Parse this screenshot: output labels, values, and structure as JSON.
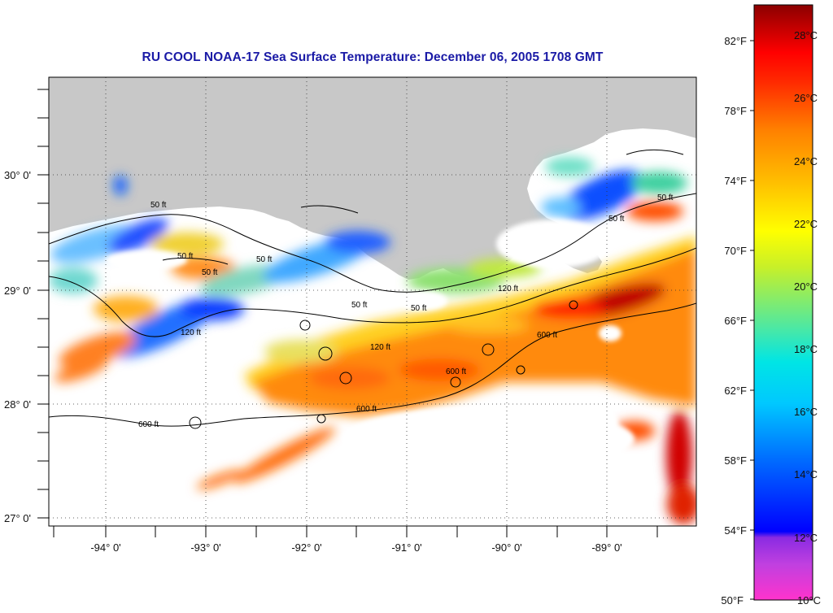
{
  "title": "RU COOL  NOAA-17  Sea Surface Temperature:  December 06, 2005 1708 GMT",
  "map": {
    "lon_labels": [
      "-94° 0'",
      "-93° 0'",
      "-92° 0'",
      "-91° 0'",
      "-90° 0'",
      "-89° 0'"
    ],
    "lat_labels": [
      "30° 0'",
      "29° 0'",
      "28° 0'",
      "27° 0'"
    ],
    "land_color": "#c8c8c8",
    "cloud_color": "#ffffff",
    "contour_labels": [
      "50 ft",
      "50 ft",
      "50 ft",
      "50 ft",
      "50 ft",
      "50 ft",
      "50 ft",
      "50 ft",
      "120 ft",
      "120 ft",
      "120 ft",
      "600 ft",
      "600 ft",
      "600 ft",
      "600 ft"
    ]
  },
  "colorbar": {
    "fahrenheit_labels": [
      "82°F",
      "78°F",
      "74°F",
      "70°F",
      "66°F",
      "62°F",
      "58°F",
      "54°F",
      "50°F"
    ],
    "celsius_labels": [
      "28°C",
      "26°C",
      "24°C",
      "22°C",
      "20°C",
      "18°C",
      "16°C",
      "14°C",
      "12°C",
      "10°C"
    ],
    "range_celsius": [
      10,
      29.5
    ],
    "colors": [
      "#ff33cc",
      "#8a2be2",
      "#0000ff",
      "#00a2ff",
      "#00e5ff",
      "#6fe88a",
      "#ffff00",
      "#ffa500",
      "#ff3a00",
      "#ff0000",
      "#8b0000"
    ]
  }
}
